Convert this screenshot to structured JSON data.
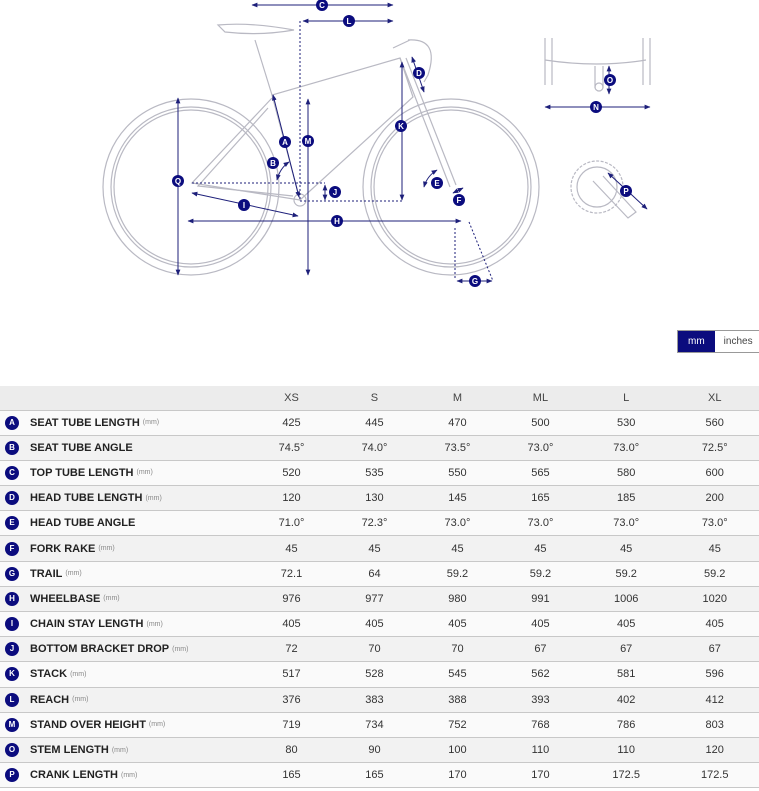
{
  "diagram": {
    "labels": [
      "A",
      "B",
      "C",
      "D",
      "E",
      "F",
      "G",
      "H",
      "I",
      "J",
      "K",
      "L",
      "M",
      "N",
      "O",
      "P",
      "Q"
    ]
  },
  "units": {
    "active": "mm",
    "inactive": "inches"
  },
  "colors": {
    "accent": "#0b0c7e",
    "line": "#b9b9c3"
  },
  "table": {
    "sizes": [
      "XS",
      "S",
      "M",
      "ML",
      "L",
      "XL"
    ],
    "rows": [
      {
        "letter": "A",
        "label": "SEAT TUBE LENGTH",
        "unit": "(mm)",
        "values": [
          "425",
          "445",
          "470",
          "500",
          "530",
          "560"
        ]
      },
      {
        "letter": "B",
        "label": "SEAT TUBE ANGLE",
        "unit": "",
        "values": [
          "74.5°",
          "74.0°",
          "73.5°",
          "73.0°",
          "73.0°",
          "72.5°"
        ]
      },
      {
        "letter": "C",
        "label": "TOP TUBE LENGTH",
        "unit": "(mm)",
        "values": [
          "520",
          "535",
          "550",
          "565",
          "580",
          "600"
        ]
      },
      {
        "letter": "D",
        "label": "HEAD TUBE LENGTH",
        "unit": "(mm)",
        "values": [
          "120",
          "130",
          "145",
          "165",
          "185",
          "200"
        ]
      },
      {
        "letter": "E",
        "label": "HEAD TUBE ANGLE",
        "unit": "",
        "values": [
          "71.0°",
          "72.3°",
          "73.0°",
          "73.0°",
          "73.0°",
          "73.0°"
        ]
      },
      {
        "letter": "F",
        "label": "FORK RAKE",
        "unit": "(mm)",
        "values": [
          "45",
          "45",
          "45",
          "45",
          "45",
          "45"
        ]
      },
      {
        "letter": "G",
        "label": "TRAIL",
        "unit": "(mm)",
        "values": [
          "72.1",
          "64",
          "59.2",
          "59.2",
          "59.2",
          "59.2"
        ]
      },
      {
        "letter": "H",
        "label": "WHEELBASE",
        "unit": "(mm)",
        "values": [
          "976",
          "977",
          "980",
          "991",
          "1006",
          "1020"
        ]
      },
      {
        "letter": "I",
        "label": "CHAIN STAY LENGTH",
        "unit": "(mm)",
        "values": [
          "405",
          "405",
          "405",
          "405",
          "405",
          "405"
        ]
      },
      {
        "letter": "J",
        "label": "BOTTOM BRACKET DROP",
        "unit": "(mm)",
        "values": [
          "72",
          "70",
          "70",
          "67",
          "67",
          "67"
        ]
      },
      {
        "letter": "K",
        "label": "STACK",
        "unit": "(mm)",
        "values": [
          "517",
          "528",
          "545",
          "562",
          "581",
          "596"
        ]
      },
      {
        "letter": "L",
        "label": "REACH",
        "unit": "(mm)",
        "values": [
          "376",
          "383",
          "388",
          "393",
          "402",
          "412"
        ]
      },
      {
        "letter": "M",
        "label": "STAND OVER HEIGHT",
        "unit": "(mm)",
        "values": [
          "719",
          "734",
          "752",
          "768",
          "786",
          "803"
        ]
      },
      {
        "letter": "O",
        "label": "STEM LENGTH",
        "unit": "(mm)",
        "values": [
          "80",
          "90",
          "100",
          "110",
          "110",
          "120"
        ]
      },
      {
        "letter": "P",
        "label": "CRANK LENGTH",
        "unit": "(mm)",
        "values": [
          "165",
          "165",
          "170",
          "170",
          "172.5",
          "172.5"
        ]
      }
    ]
  }
}
